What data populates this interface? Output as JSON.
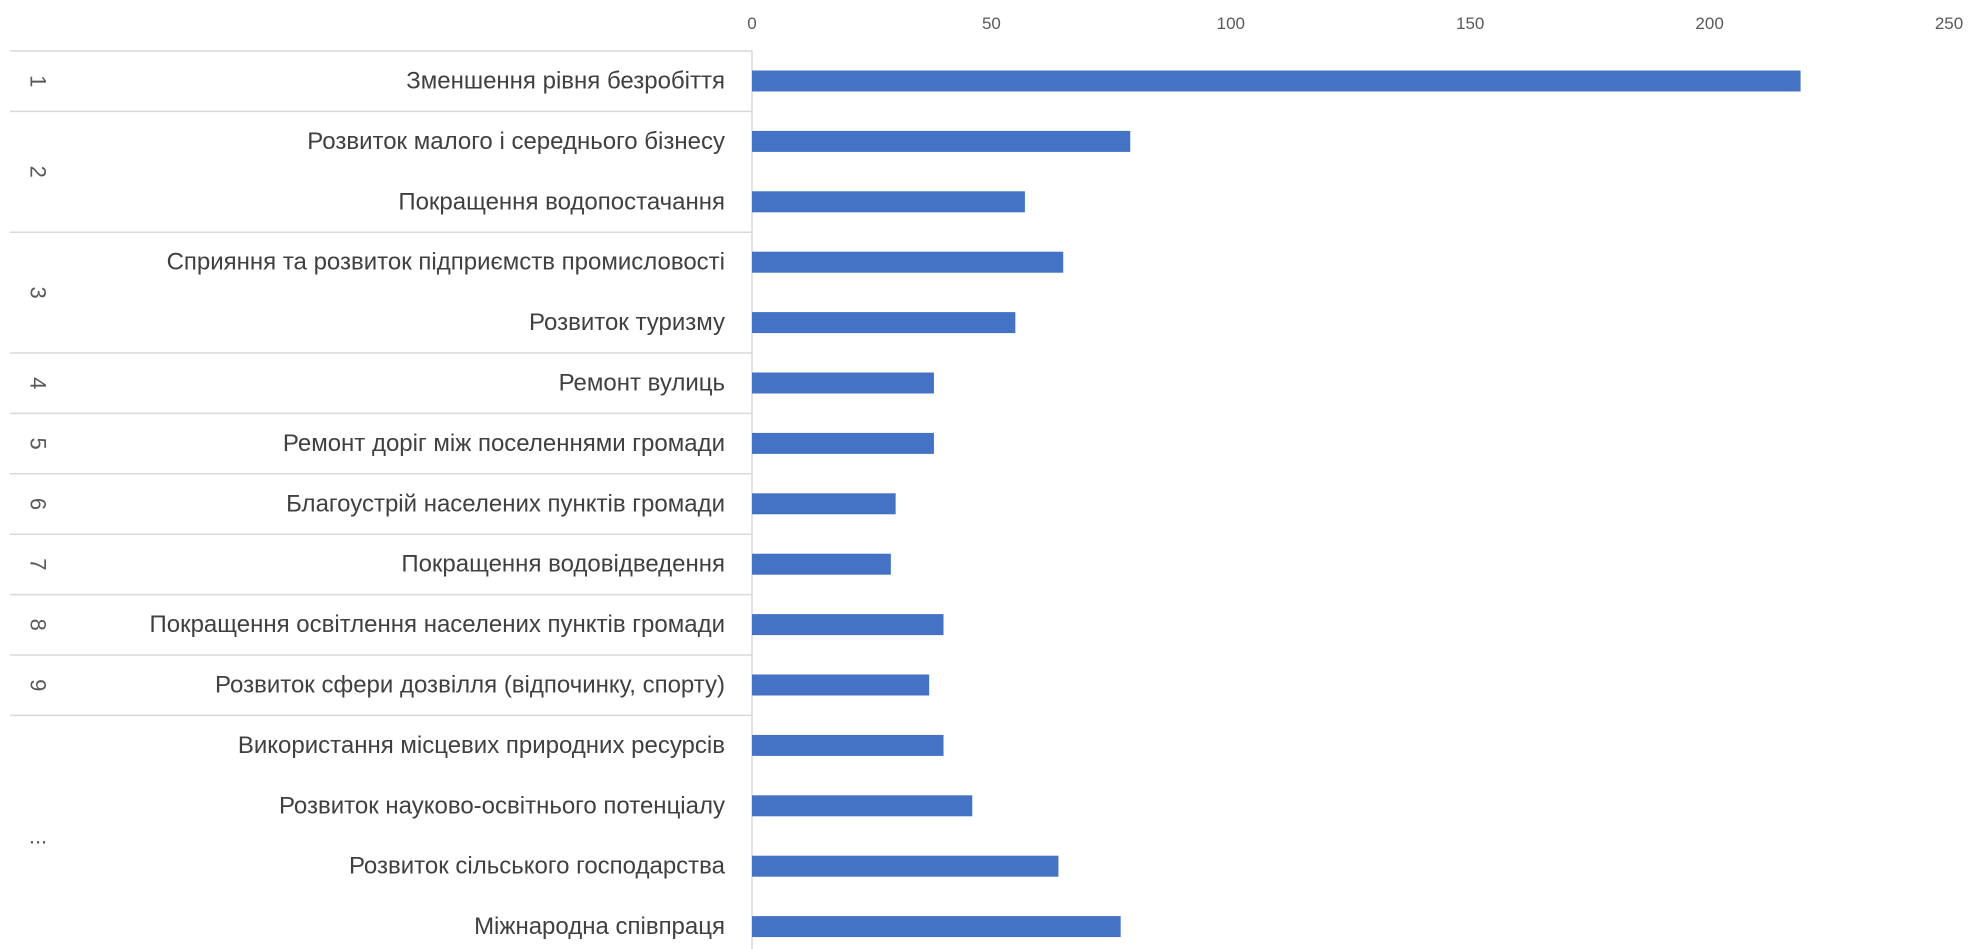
{
  "colors": {
    "bar": "#4472C4",
    "separator": "#D9D9D9",
    "text": "#404040"
  },
  "chart_data": {
    "type": "bar",
    "orientation": "horizontal",
    "title": "",
    "xlabel": "",
    "ylabel": "",
    "xlim": [
      0,
      250
    ],
    "ticks": [
      0,
      50,
      100,
      150,
      200,
      250
    ],
    "grid": false,
    "legend": "none",
    "groups": [
      {
        "label": "1",
        "start": 0,
        "end": 0
      },
      {
        "label": "2",
        "start": 1,
        "end": 2
      },
      {
        "label": "3",
        "start": 3,
        "end": 4
      },
      {
        "label": "4",
        "start": 5,
        "end": 5
      },
      {
        "label": "5",
        "start": 6,
        "end": 6
      },
      {
        "label": "6",
        "start": 7,
        "end": 7
      },
      {
        "label": "7",
        "start": 8,
        "end": 8
      },
      {
        "label": "8",
        "start": 9,
        "end": 9
      },
      {
        "label": "9",
        "start": 10,
        "end": 10
      },
      {
        "label": "...",
        "start": 11,
        "end": 14
      }
    ],
    "categories": [
      "Зменшення рівня безробіття",
      "Розвиток малого і середнього бізнесу",
      "Покращення водопостачання",
      "Сприяння та розвиток підприємств промисловості",
      "Розвиток туризму",
      "Ремонт вулиць",
      "Ремонт доріг між поселеннями громади",
      "Благоустрій населених пунктів громади",
      "Покращення водовідведення",
      "Покращення освітлення населених пунктів громади",
      "Розвиток сфери дозвілля (відпочинку, спорту)",
      "Використання місцевих природних ресурсів",
      "Розвиток науково-освітнього потенціалу",
      "Розвиток сільського господарства",
      "Міжнародна співпраця"
    ],
    "values": [
      219,
      79,
      57,
      65,
      55,
      38,
      38,
      30,
      29,
      40,
      37,
      40,
      46,
      64,
      77
    ]
  }
}
